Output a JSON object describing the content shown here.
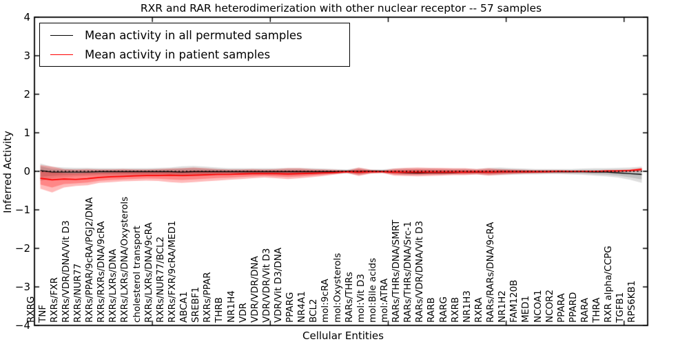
{
  "chart_data": {
    "type": "line",
    "title": "RXR and RAR heterodimerization with other nuclear receptor -- 57 samples",
    "xlabel": "Cellular Entities",
    "ylabel": "Inferred Activity",
    "ylim": [
      -4,
      4
    ],
    "yticks": [
      4,
      3,
      2,
      1,
      0,
      -1,
      -2,
      -3,
      -4
    ],
    "xlim": [
      0,
      52
    ],
    "xticks_major": [
      10,
      20,
      30,
      40,
      50
    ],
    "grid": false,
    "legend": {
      "position": "upper left",
      "entries": [
        {
          "label": "Mean activity in all permuted samples",
          "color": "#000000"
        },
        {
          "label": "Mean activity in patient samples",
          "color": "#ff0000"
        }
      ]
    },
    "zero_line": {
      "y": 0,
      "style": "dashed",
      "color": "#000000"
    },
    "categories": [
      "RXRG",
      "TNF",
      "RXRs/FXR",
      "RXRs/VDR/DNA/Vit D3",
      "RXRs/NUR77",
      "RXRs/PPAR/9cRA/PGJ2/DNA",
      "RXRs/RXRs/DNA/9cRA",
      "RXRs/LXRs/DNA",
      "RXRs/LXRs/DNA/Oxysterols",
      "cholesterol transport",
      "RXRs/LXRs/DNA/9cRA",
      "RXRs/NUR77/BCL2",
      "RXRs/FXR/9cRA/MED1",
      "ABCA1",
      "SREBF1",
      "RXRs/PPAR",
      "THRB",
      "NR1H4",
      "VDR",
      "VDR/VDR/DNA",
      "VDR/VDR/Vit D3",
      "VDR/Vit D3/DNA",
      "PPARG",
      "NR4A1",
      "BCL2",
      "mol:9cRA",
      "mol:Oxysterols",
      "RARs/THRs",
      "mol:Vit D3",
      "mol:Bile acids",
      "mol:ATRA",
      "RARs/THRs/DNA/SMRT",
      "RARs/THRs/DNA/Src-1",
      "RARs/VDR/DNA/Vit D3",
      "RARB",
      "RARG",
      "RXRB",
      "NR1H3",
      "RXRA",
      "RARs/RARs/DNA/9cRA",
      "NR1H2",
      "FAM120B",
      "MED1",
      "NCOA1",
      "NCOR2",
      "PPARA",
      "PPARD",
      "RARA",
      "THRA",
      "RXR alpha/CCPG",
      "TGFB1",
      "RPS6KB1"
    ],
    "series": [
      {
        "name": "Mean activity in all permuted samples",
        "color": "#000000",
        "values": [
          0.02,
          -0.02,
          -0.02,
          -0.02,
          -0.02,
          -0.01,
          -0.01,
          -0.01,
          -0.01,
          -0.01,
          -0.01,
          -0.01,
          -0.02,
          -0.01,
          -0.01,
          -0.01,
          -0.01,
          -0.01,
          -0.01,
          -0.01,
          -0.01,
          -0.01,
          -0.01,
          -0.01,
          -0.01,
          -0.01,
          0.0,
          -0.01,
          0.0,
          0.0,
          -0.02,
          -0.03,
          -0.04,
          -0.03,
          -0.03,
          -0.03,
          -0.02,
          -0.02,
          -0.02,
          -0.01,
          -0.01,
          -0.01,
          -0.01,
          -0.01,
          -0.01,
          -0.01,
          -0.01,
          -0.02,
          -0.02,
          -0.04,
          -0.06,
          -0.08
        ]
      },
      {
        "name": "Mean activity in patient samples",
        "color": "#ff0000",
        "values": [
          -0.18,
          -0.22,
          -0.2,
          -0.21,
          -0.19,
          -0.16,
          -0.14,
          -0.13,
          -0.12,
          -0.11,
          -0.11,
          -0.1,
          -0.11,
          -0.1,
          -0.09,
          -0.08,
          -0.08,
          -0.07,
          -0.06,
          -0.06,
          -0.06,
          -0.07,
          -0.06,
          -0.05,
          -0.04,
          -0.03,
          -0.01,
          -0.02,
          -0.01,
          -0.01,
          -0.02,
          -0.02,
          -0.02,
          -0.02,
          -0.02,
          -0.02,
          -0.02,
          -0.01,
          -0.02,
          -0.01,
          -0.01,
          -0.01,
          -0.01,
          -0.01,
          0.0,
          0.0,
          0.0,
          0.0,
          0.01,
          0.01,
          0.02,
          0.05
        ]
      }
    ],
    "bands": [
      {
        "name": "permuted samples range",
        "color": "rgba(0,0,0,0.13)",
        "upper": [
          0.2,
          0.12,
          0.1,
          0.09,
          0.09,
          0.08,
          0.08,
          0.08,
          0.08,
          0.08,
          0.09,
          0.1,
          0.13,
          0.14,
          0.12,
          0.1,
          0.08,
          0.08,
          0.08,
          0.08,
          0.08,
          0.09,
          0.09,
          0.08,
          0.07,
          0.06,
          0.05,
          0.09,
          0.05,
          0.05,
          0.07,
          0.08,
          0.08,
          0.08,
          0.07,
          0.07,
          0.07,
          0.06,
          0.09,
          0.1,
          0.08,
          0.07,
          0.06,
          0.06,
          0.06,
          0.06,
          0.07,
          0.08,
          0.08,
          0.09,
          0.1,
          0.12
        ],
        "lower": [
          -0.25,
          -0.18,
          -0.15,
          -0.13,
          -0.12,
          -0.11,
          -0.11,
          -0.11,
          -0.11,
          -0.11,
          -0.11,
          -0.12,
          -0.13,
          -0.12,
          -0.11,
          -0.1,
          -0.09,
          -0.09,
          -0.09,
          -0.09,
          -0.1,
          -0.11,
          -0.1,
          -0.09,
          -0.08,
          -0.07,
          -0.06,
          -0.1,
          -0.06,
          -0.05,
          -0.08,
          -0.1,
          -0.1,
          -0.09,
          -0.09,
          -0.08,
          -0.08,
          -0.08,
          -0.1,
          -0.1,
          -0.09,
          -0.08,
          -0.08,
          -0.07,
          -0.07,
          -0.08,
          -0.09,
          -0.11,
          -0.13,
          -0.16,
          -0.22,
          -0.3
        ]
      },
      {
        "name": "patient samples range",
        "color": "rgba(255,0,0,0.27)",
        "upper": [
          0.16,
          0.12,
          0.06,
          0.05,
          0.06,
          0.05,
          0.05,
          0.06,
          0.05,
          0.05,
          0.06,
          0.07,
          0.08,
          0.1,
          0.08,
          0.06,
          0.05,
          0.05,
          0.06,
          0.05,
          0.06,
          0.08,
          0.08,
          0.06,
          0.05,
          0.04,
          0.02,
          0.1,
          0.04,
          0.02,
          0.07,
          0.09,
          0.1,
          0.09,
          0.09,
          0.08,
          0.08,
          0.06,
          0.08,
          0.06,
          0.05,
          0.04,
          0.03,
          0.03,
          0.03,
          0.02,
          0.02,
          0.02,
          0.02,
          0.03,
          0.05,
          0.09
        ],
        "lower": [
          -0.45,
          -0.55,
          -0.42,
          -0.38,
          -0.36,
          -0.3,
          -0.28,
          -0.26,
          -0.25,
          -0.24,
          -0.25,
          -0.28,
          -0.3,
          -0.28,
          -0.26,
          -0.24,
          -0.22,
          -0.2,
          -0.18,
          -0.16,
          -0.18,
          -0.2,
          -0.18,
          -0.15,
          -0.12,
          -0.08,
          -0.04,
          -0.12,
          -0.06,
          -0.04,
          -0.11,
          -0.12,
          -0.13,
          -0.12,
          -0.11,
          -0.1,
          -0.1,
          -0.08,
          -0.11,
          -0.09,
          -0.07,
          -0.06,
          -0.05,
          -0.04,
          -0.04,
          -0.04,
          -0.03,
          -0.03,
          -0.03,
          -0.02,
          -0.01,
          0.0
        ]
      }
    ]
  }
}
